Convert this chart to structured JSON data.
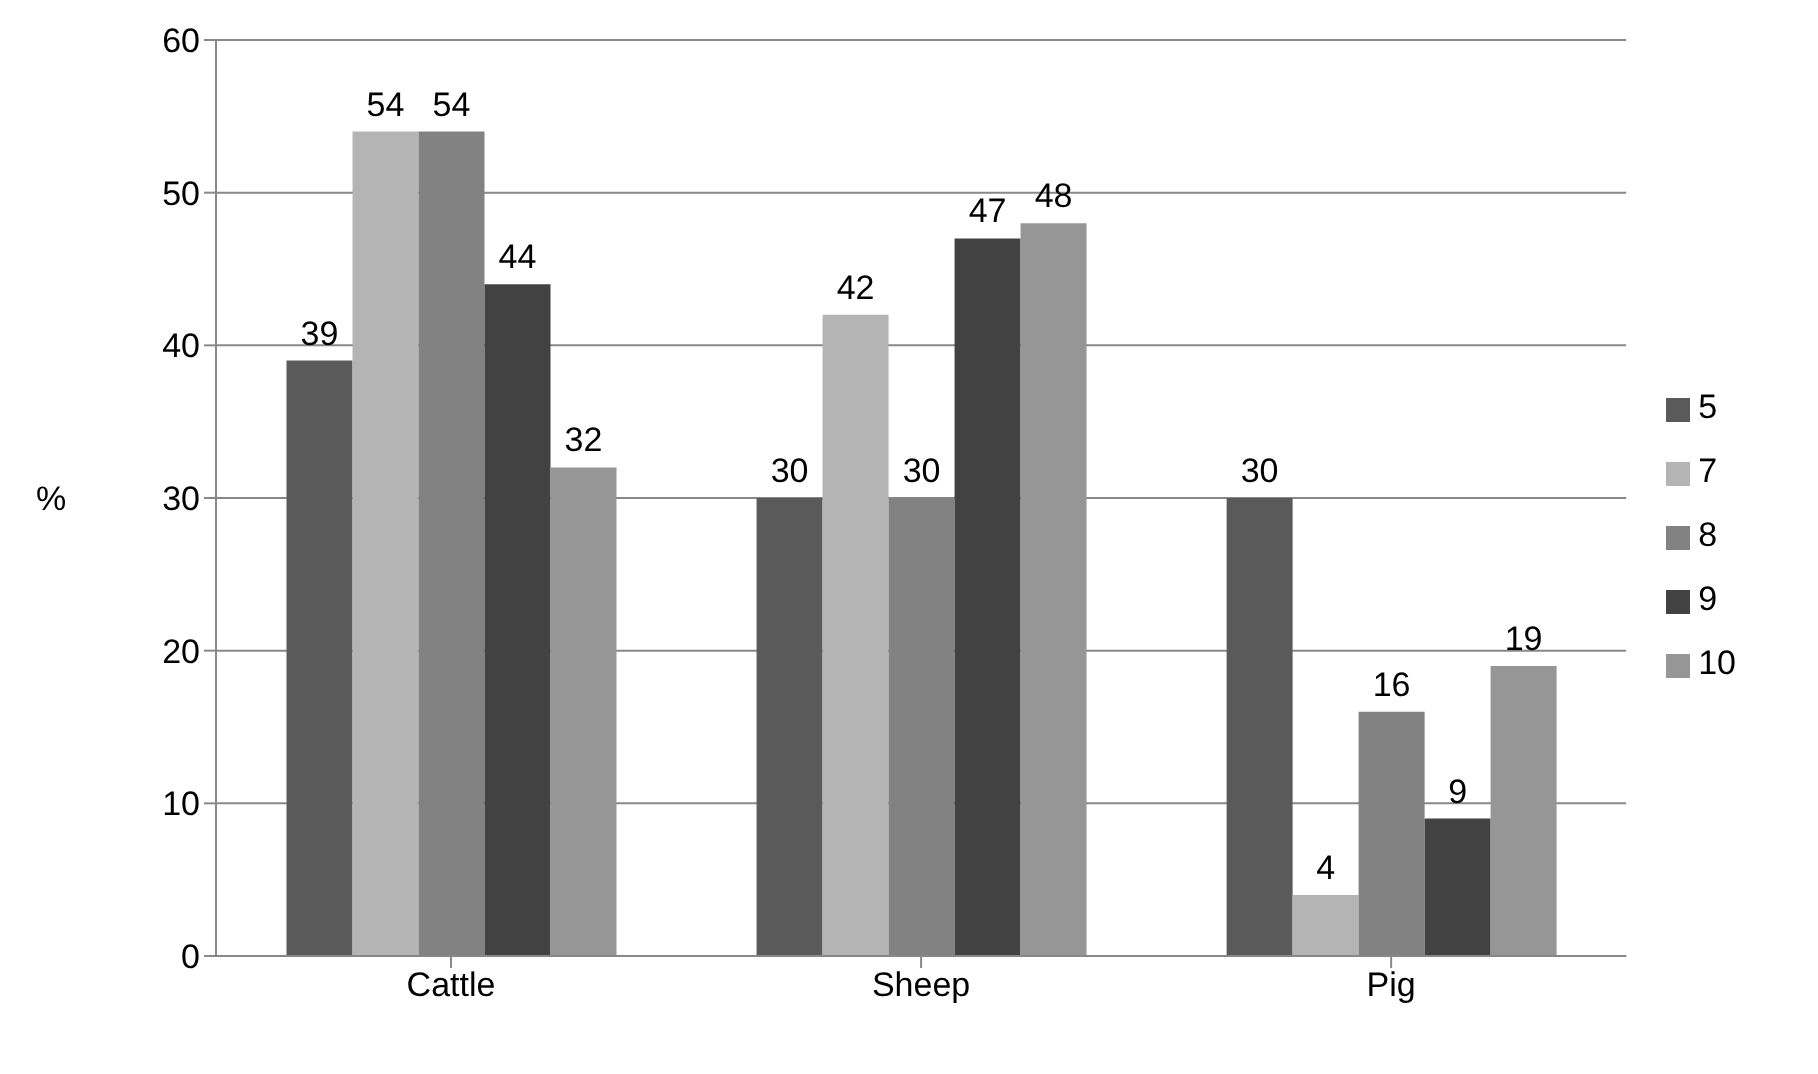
{
  "chart_data": {
    "type": "bar",
    "ylabel": "%",
    "categories": [
      "Cattle",
      "Sheep",
      "Pig"
    ],
    "series": [
      {
        "name": "5",
        "color": "#5a5a5a",
        "values": [
          39,
          30,
          30
        ]
      },
      {
        "name": "7",
        "color": "#b4b4b4",
        "values": [
          54,
          42,
          4
        ]
      },
      {
        "name": "8",
        "color": "#828282",
        "values": [
          54,
          30,
          16
        ]
      },
      {
        "name": "9",
        "color": "#424242",
        "values": [
          44,
          47,
          9
        ]
      },
      {
        "name": "10",
        "color": "#969696",
        "values": [
          32,
          48,
          19
        ]
      }
    ],
    "ylim": [
      0,
      60
    ],
    "yticks": [
      0,
      10,
      20,
      30,
      40,
      50,
      60
    ],
    "grid": "y",
    "legend": "right",
    "data_labels": true
  }
}
